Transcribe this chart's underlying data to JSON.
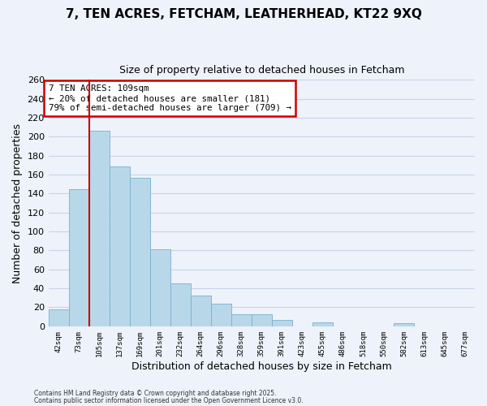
{
  "title": "7, TEN ACRES, FETCHAM, LEATHERHEAD, KT22 9XQ",
  "subtitle": "Size of property relative to detached houses in Fetcham",
  "xlabel": "Distribution of detached houses by size in Fetcham",
  "ylabel": "Number of detached properties",
  "bar_color": "#b8d8ea",
  "bar_edge_color": "#7aafcc",
  "grid_color": "#c8d4e8",
  "background_color": "#eef2fa",
  "categories": [
    "42sqm",
    "73sqm",
    "105sqm",
    "137sqm",
    "169sqm",
    "201sqm",
    "232sqm",
    "264sqm",
    "296sqm",
    "328sqm",
    "359sqm",
    "391sqm",
    "423sqm",
    "455sqm",
    "486sqm",
    "518sqm",
    "550sqm",
    "582sqm",
    "613sqm",
    "645sqm",
    "677sqm"
  ],
  "values": [
    18,
    145,
    206,
    169,
    157,
    81,
    45,
    32,
    24,
    13,
    13,
    7,
    0,
    4,
    0,
    0,
    0,
    3,
    0,
    0,
    0
  ],
  "ylim": [
    0,
    260
  ],
  "yticks": [
    0,
    20,
    40,
    60,
    80,
    100,
    120,
    140,
    160,
    180,
    200,
    220,
    240,
    260
  ],
  "vline_color": "#cc0000",
  "vline_index": 1.5,
  "annotation_title": "7 TEN ACRES: 109sqm",
  "annotation_line1": "← 20% of detached houses are smaller (181)",
  "annotation_line2": "79% of semi-detached houses are larger (709) →",
  "footnote1": "Contains HM Land Registry data © Crown copyright and database right 2025.",
  "footnote2": "Contains public sector information licensed under the Open Government Licence v3.0."
}
